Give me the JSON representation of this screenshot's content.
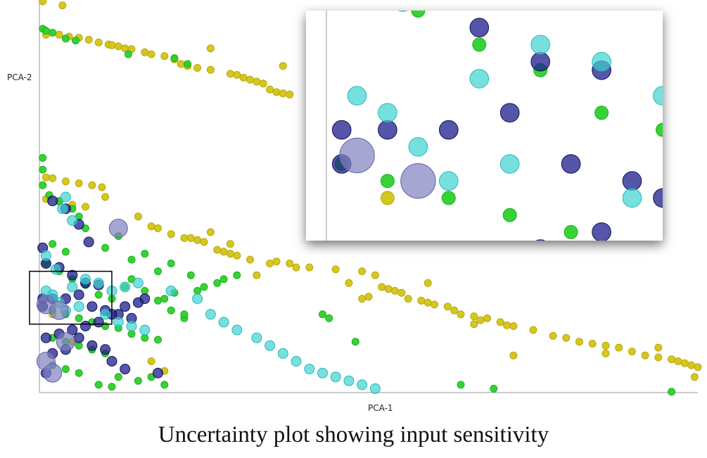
{
  "caption": "Uncertainty plot showing input sensitivity",
  "chart_data": {
    "type": "scatter",
    "xlabel": "PCA-1",
    "ylabel": "PCA-2",
    "title": "",
    "grid": false,
    "legend": "none",
    "has_zoom_inset": true,
    "colors": {
      "yellow": "#d4c414",
      "green": "#2bd02b",
      "navy": "#1c1c8c",
      "cyan": "#3fd2d2",
      "lavender": "#8080c0",
      "axis": "#999999",
      "box": "#000000"
    },
    "series": [
      {
        "color": "yellow",
        "points": [
          [
            0.5,
            100
          ],
          [
            3.5,
            99
          ],
          [
            1,
            91.5
          ],
          [
            3,
            91.5
          ],
          [
            4.5,
            91
          ],
          [
            6,
            90.7
          ],
          [
            7.5,
            90.2
          ],
          [
            9,
            89.5
          ],
          [
            10.5,
            89
          ],
          [
            11,
            88.8
          ],
          [
            12,
            88.5
          ],
          [
            13,
            88
          ],
          [
            14,
            87.8
          ],
          [
            16,
            87
          ],
          [
            17,
            86.5
          ],
          [
            19,
            86
          ],
          [
            20.5,
            85.2
          ],
          [
            21.5,
            84
          ],
          [
            22.5,
            83.5
          ],
          [
            24,
            83
          ],
          [
            26,
            82.5
          ],
          [
            29,
            81.5
          ],
          [
            30,
            81.2
          ],
          [
            31,
            80.5
          ],
          [
            32,
            80
          ],
          [
            33,
            79.5
          ],
          [
            34,
            79
          ],
          [
            35,
            77.5
          ],
          [
            36,
            76.8
          ],
          [
            37,
            76.5
          ],
          [
            38,
            76.2
          ],
          [
            37,
            83.5
          ],
          [
            26,
            88
          ],
          [
            1,
            55
          ],
          [
            2,
            54.8
          ],
          [
            4,
            54
          ],
          [
            6,
            53.5
          ],
          [
            8,
            53
          ],
          [
            9.5,
            52.5
          ],
          [
            1,
            49.5
          ],
          [
            3,
            48.8
          ],
          [
            5,
            48
          ],
          [
            7,
            47.5
          ],
          [
            10,
            50
          ],
          [
            15,
            45
          ],
          [
            17,
            42.5
          ],
          [
            20,
            40.5
          ],
          [
            22,
            39.5
          ],
          [
            24,
            39
          ],
          [
            25,
            38.5
          ],
          [
            27,
            36.5
          ],
          [
            28,
            36
          ],
          [
            29,
            35.5
          ],
          [
            30,
            35
          ],
          [
            32,
            34
          ],
          [
            35,
            33
          ],
          [
            38,
            33
          ],
          [
            39,
            32
          ],
          [
            41,
            32
          ],
          [
            45,
            31.5
          ],
          [
            49,
            31
          ],
          [
            51,
            30
          ],
          [
            52,
            27
          ],
          [
            53,
            26.5
          ],
          [
            54,
            26
          ],
          [
            55,
            25.5
          ],
          [
            56,
            24
          ],
          [
            58,
            23.5
          ],
          [
            60,
            22.5
          ],
          [
            62,
            22
          ],
          [
            63,
            21
          ],
          [
            64,
            20
          ],
          [
            66,
            19.5
          ],
          [
            68,
            19
          ],
          [
            70,
            18
          ],
          [
            72,
            17
          ],
          [
            75,
            16
          ],
          [
            78,
            14.5
          ],
          [
            80,
            14
          ],
          [
            82,
            13
          ],
          [
            84,
            12.5
          ],
          [
            86,
            12
          ],
          [
            88,
            11.5
          ],
          [
            90,
            10.5
          ],
          [
            92,
            9.5
          ],
          [
            94,
            9
          ],
          [
            96,
            8.5
          ],
          [
            97,
            8
          ],
          [
            98,
            7.5
          ],
          [
            99,
            7
          ],
          [
            100,
            6.5
          ],
          [
            18,
            42
          ],
          [
            23,
            39.5
          ],
          [
            26,
            41
          ],
          [
            29,
            38
          ],
          [
            33,
            30
          ],
          [
            36,
            33.5
          ],
          [
            47,
            28
          ],
          [
            49,
            24
          ],
          [
            50,
            24.5
          ],
          [
            59,
            28
          ],
          [
            59,
            23
          ],
          [
            67,
            18.5
          ],
          [
            71,
            17.2
          ],
          [
            2,
            20
          ],
          [
            5,
            13
          ],
          [
            8,
            11
          ],
          [
            10,
            10
          ],
          [
            17,
            8
          ],
          [
            19,
            5.5
          ],
          [
            94,
            11.5
          ],
          [
            99.5,
            4
          ],
          [
            66,
            17.5
          ],
          [
            72,
            9.5
          ],
          [
            86,
            10
          ]
        ]
      },
      {
        "color": "green",
        "points": [
          [
            0.5,
            93
          ],
          [
            1,
            92.5
          ],
          [
            2,
            92
          ],
          [
            4,
            90.5
          ],
          [
            5.5,
            90
          ],
          [
            13.5,
            86.5
          ],
          [
            20.5,
            85.5
          ],
          [
            22.5,
            84
          ],
          [
            0.5,
            60
          ],
          [
            0.5,
            57
          ],
          [
            0.5,
            53
          ],
          [
            1.5,
            50.5
          ],
          [
            3,
            49
          ],
          [
            5,
            47
          ],
          [
            6,
            45
          ],
          [
            7,
            42
          ],
          [
            2,
            38
          ],
          [
            4,
            36
          ],
          [
            1,
            33
          ],
          [
            3,
            31
          ],
          [
            5,
            29
          ],
          [
            7,
            27.5
          ],
          [
            9,
            25
          ],
          [
            11,
            24
          ],
          [
            13,
            27
          ],
          [
            14,
            29
          ],
          [
            16,
            26
          ],
          [
            18,
            23.5
          ],
          [
            20,
            21
          ],
          [
            22,
            19
          ],
          [
            0.5,
            22
          ],
          [
            2,
            21
          ],
          [
            4,
            20
          ],
          [
            6,
            19
          ],
          [
            8,
            18
          ],
          [
            10,
            17
          ],
          [
            12,
            16.5
          ],
          [
            14,
            15
          ],
          [
            16,
            14
          ],
          [
            18,
            13.5
          ],
          [
            2,
            14
          ],
          [
            4,
            13
          ],
          [
            6,
            12
          ],
          [
            8,
            11
          ],
          [
            10,
            10
          ],
          [
            2,
            7
          ],
          [
            4,
            6
          ],
          [
            6,
            5
          ],
          [
            12,
            4
          ],
          [
            9,
            2
          ],
          [
            11,
            1.5
          ],
          [
            15,
            3
          ],
          [
            17,
            4
          ],
          [
            19,
            2
          ],
          [
            10,
            37
          ],
          [
            12,
            40
          ],
          [
            18,
            31
          ],
          [
            20,
            33
          ],
          [
            23,
            30
          ],
          [
            14,
            34
          ],
          [
            16,
            35.5
          ],
          [
            19,
            24
          ],
          [
            20.5,
            25.5
          ],
          [
            22,
            20
          ],
          [
            24,
            26
          ],
          [
            25,
            27
          ],
          [
            27,
            28
          ],
          [
            28,
            29
          ],
          [
            30,
            30
          ],
          [
            43,
            20
          ],
          [
            44,
            19
          ],
          [
            48,
            13
          ],
          [
            64,
            2
          ],
          [
            69,
            1
          ],
          [
            96,
            0.2
          ]
        ]
      },
      {
        "color": "navy",
        "points": [
          [
            2,
            49
          ],
          [
            4,
            47
          ],
          [
            6,
            43
          ],
          [
            7.5,
            38.5
          ],
          [
            0.5,
            37
          ],
          [
            1,
            33
          ],
          [
            3,
            32
          ],
          [
            5,
            30
          ],
          [
            7,
            28
          ],
          [
            9,
            27.5
          ],
          [
            0.5,
            24
          ],
          [
            0.5,
            22
          ],
          [
            2,
            24
          ],
          [
            4,
            24
          ],
          [
            6,
            25
          ],
          [
            8,
            22
          ],
          [
            10,
            21
          ],
          [
            12,
            20
          ],
          [
            14,
            19
          ],
          [
            16,
            24
          ],
          [
            1,
            14
          ],
          [
            3,
            15
          ],
          [
            5,
            16
          ],
          [
            7,
            17
          ],
          [
            9,
            18
          ],
          [
            11,
            20
          ],
          [
            13,
            22
          ],
          [
            15,
            23
          ],
          [
            8,
            12
          ],
          [
            10,
            11
          ],
          [
            6,
            14
          ],
          [
            4,
            11
          ],
          [
            2,
            10
          ],
          [
            1,
            5
          ],
          [
            11,
            8
          ],
          [
            13,
            6
          ],
          [
            18,
            5
          ]
        ]
      },
      {
        "color": "cyan",
        "points": [
          [
            4,
            50
          ],
          [
            3.5,
            47
          ],
          [
            5,
            44
          ],
          [
            1,
            35
          ],
          [
            2.5,
            31.5
          ],
          [
            1,
            26
          ],
          [
            2,
            25
          ],
          [
            3,
            23
          ],
          [
            4,
            21
          ],
          [
            5,
            27
          ],
          [
            7,
            29
          ],
          [
            9,
            28
          ],
          [
            11,
            26
          ],
          [
            13,
            27
          ],
          [
            15,
            28
          ],
          [
            10,
            20
          ],
          [
            12,
            18
          ],
          [
            14,
            17
          ],
          [
            16,
            16
          ],
          [
            6,
            22
          ],
          [
            20,
            26
          ],
          [
            24,
            24
          ],
          [
            26,
            20
          ],
          [
            28,
            18
          ],
          [
            30,
            16
          ],
          [
            33,
            14
          ],
          [
            35,
            12
          ],
          [
            37,
            10
          ],
          [
            39,
            8
          ],
          [
            41,
            6
          ],
          [
            43,
            5
          ],
          [
            45,
            4
          ],
          [
            47,
            3
          ],
          [
            49,
            2
          ],
          [
            51,
            1
          ]
        ]
      },
      {
        "color": "lavender",
        "points": [
          [
            12,
            42
          ],
          [
            1,
            22.5
          ],
          [
            3,
            21
          ],
          [
            4,
            13
          ],
          [
            1,
            8
          ],
          [
            2,
            5
          ]
        ]
      }
    ]
  }
}
